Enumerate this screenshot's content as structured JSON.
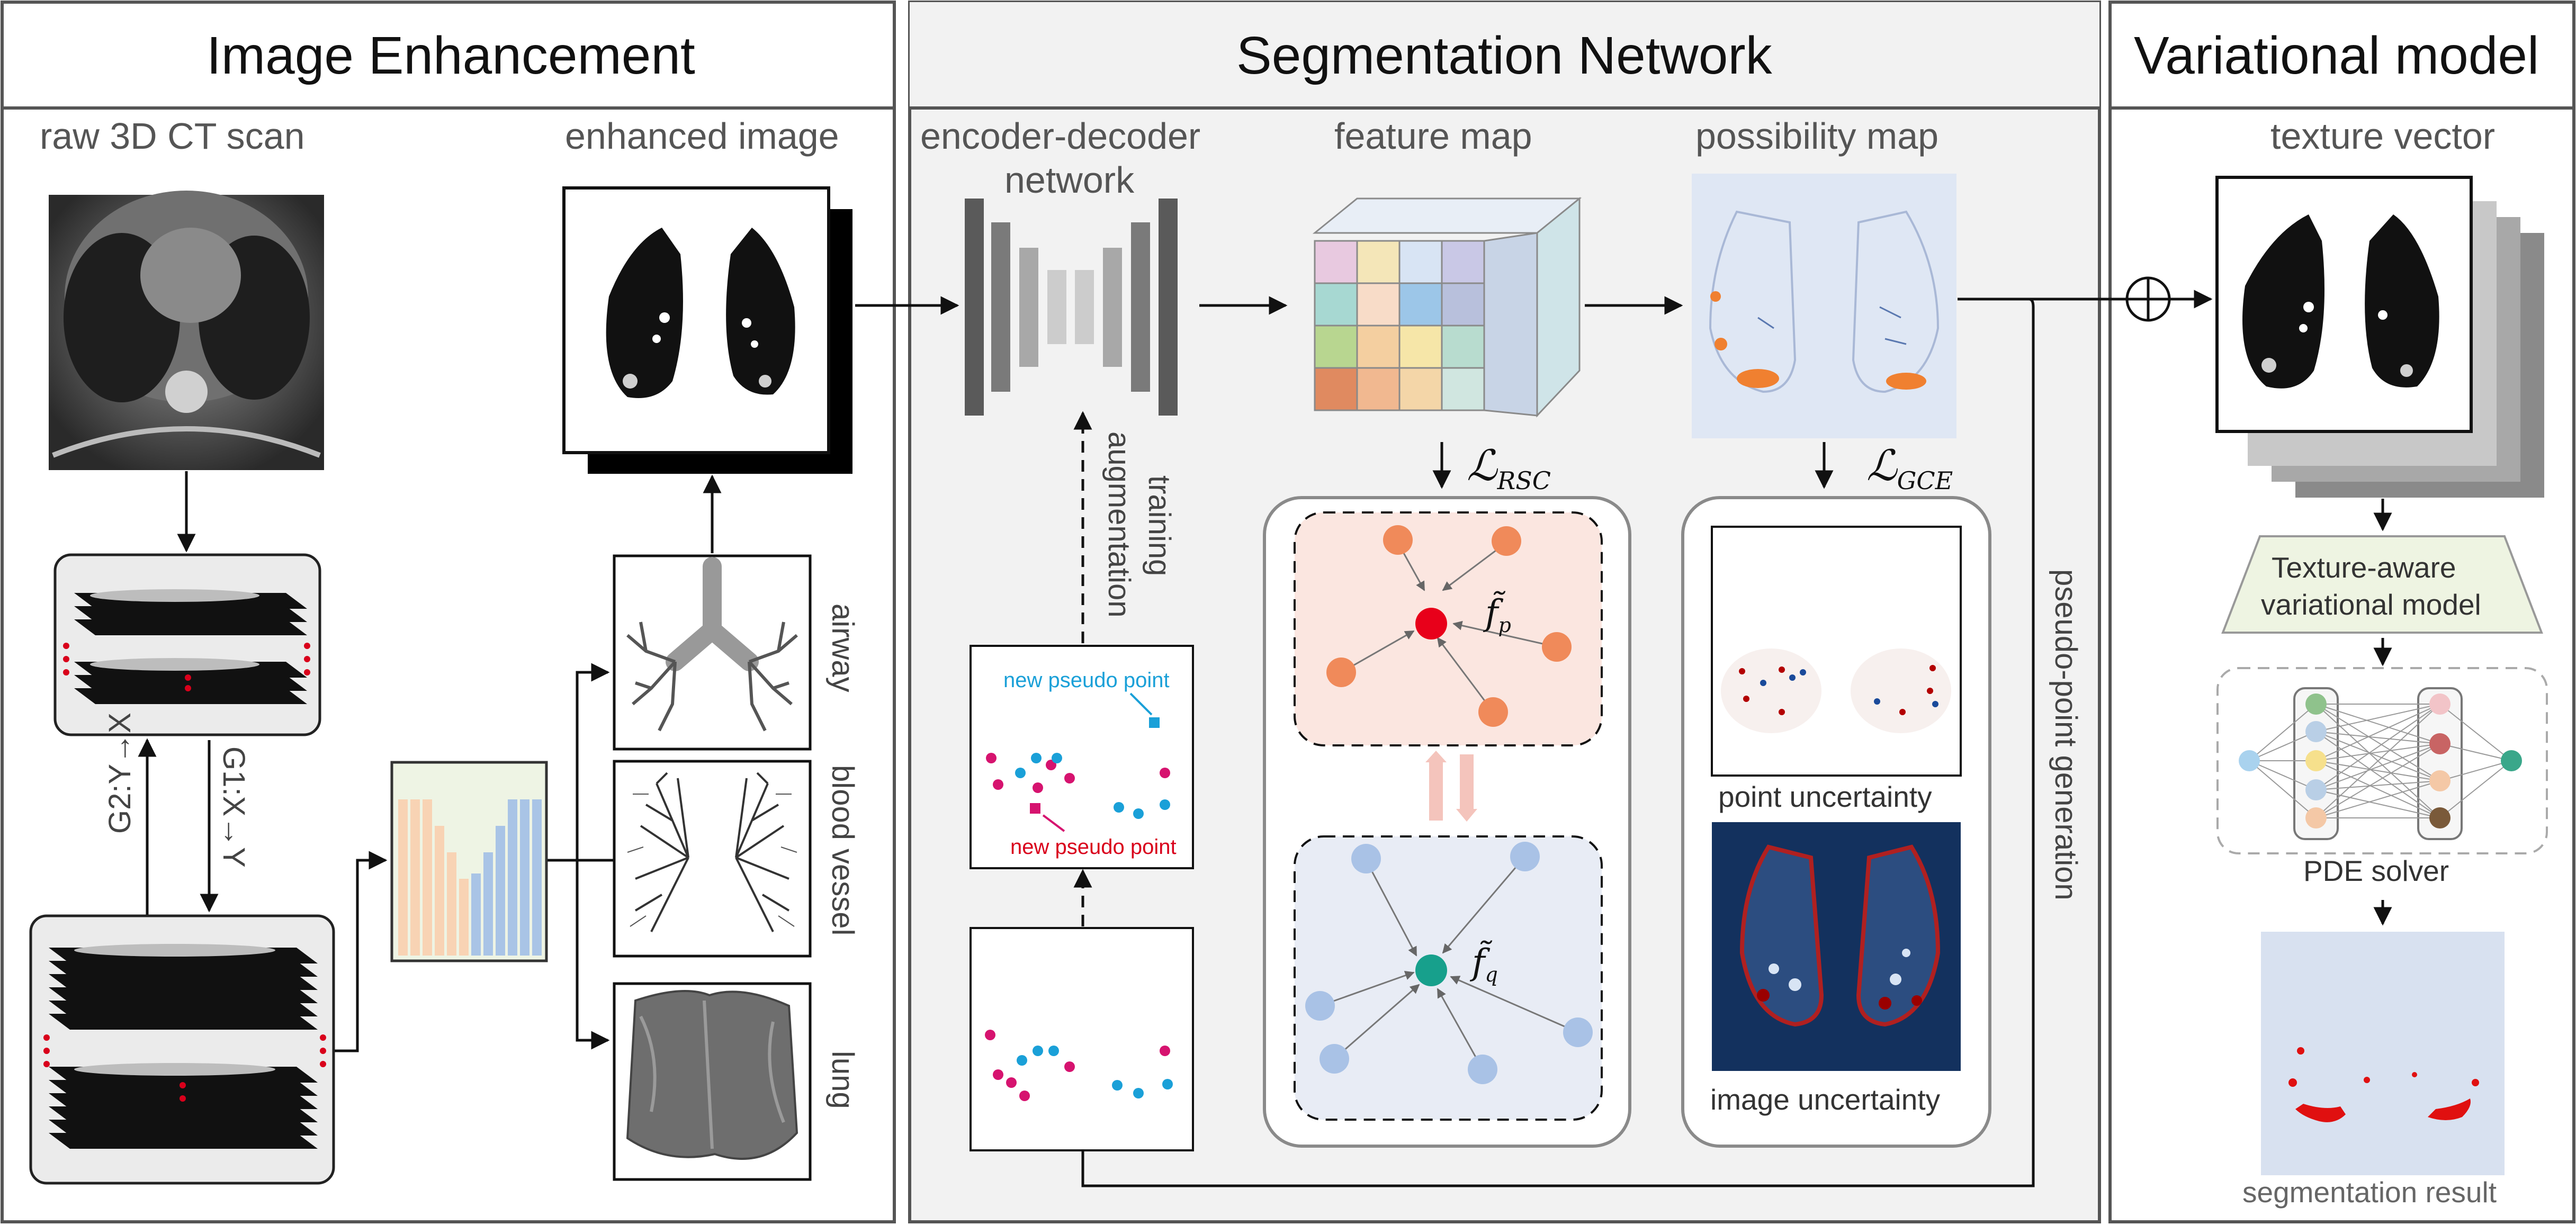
{
  "sections": {
    "enhancement": "Image Enhancement",
    "segmentation": "Segmentation Network",
    "variational": "Variational model"
  },
  "enhancement": {
    "raw_scan": "raw 3D CT scan",
    "enhanced": "enhanced image",
    "g1": "G1:X→Y",
    "g2": "G2:Y→X",
    "airway": "airway",
    "vessel": "blood vessel",
    "lung": "lung"
  },
  "segmentation": {
    "encoder_line1": "encoder-decoder",
    "encoder_line2": "network",
    "feature_map": "feature map",
    "possibility_map": "possibility map",
    "training_line1": "training",
    "training_line2": "augmentation",
    "new_pseudo_blue": "new pseudo point",
    "new_pseudo_red": "new pseudo point",
    "loss_rsc": "ℒ",
    "loss_rsc_sub": "RSC",
    "loss_gce": "ℒ",
    "loss_gce_sub": "GCE",
    "fp": "f̃",
    "fp_sub": "p",
    "fq": "f̃",
    "fq_sub": "q",
    "point_uncertainty": "point uncertainty",
    "image_uncertainty": "image uncertainty",
    "pseudo_generation": "pseudo-point generation"
  },
  "variational": {
    "texture_vector": "texture vector",
    "model_line1": "Texture-aware",
    "model_line2": "variational model",
    "pde": "PDE solver",
    "result": "segmentation result"
  },
  "colors": {
    "panel_gray": "#f2f2f2",
    "border": "#555555",
    "red_point": "#d9001b",
    "teal_point": "#17a08c",
    "pink": "#d6136f",
    "cyan": "#1aa0d8",
    "orange": "#f0875a",
    "blue_light": "#a9c4e6"
  }
}
